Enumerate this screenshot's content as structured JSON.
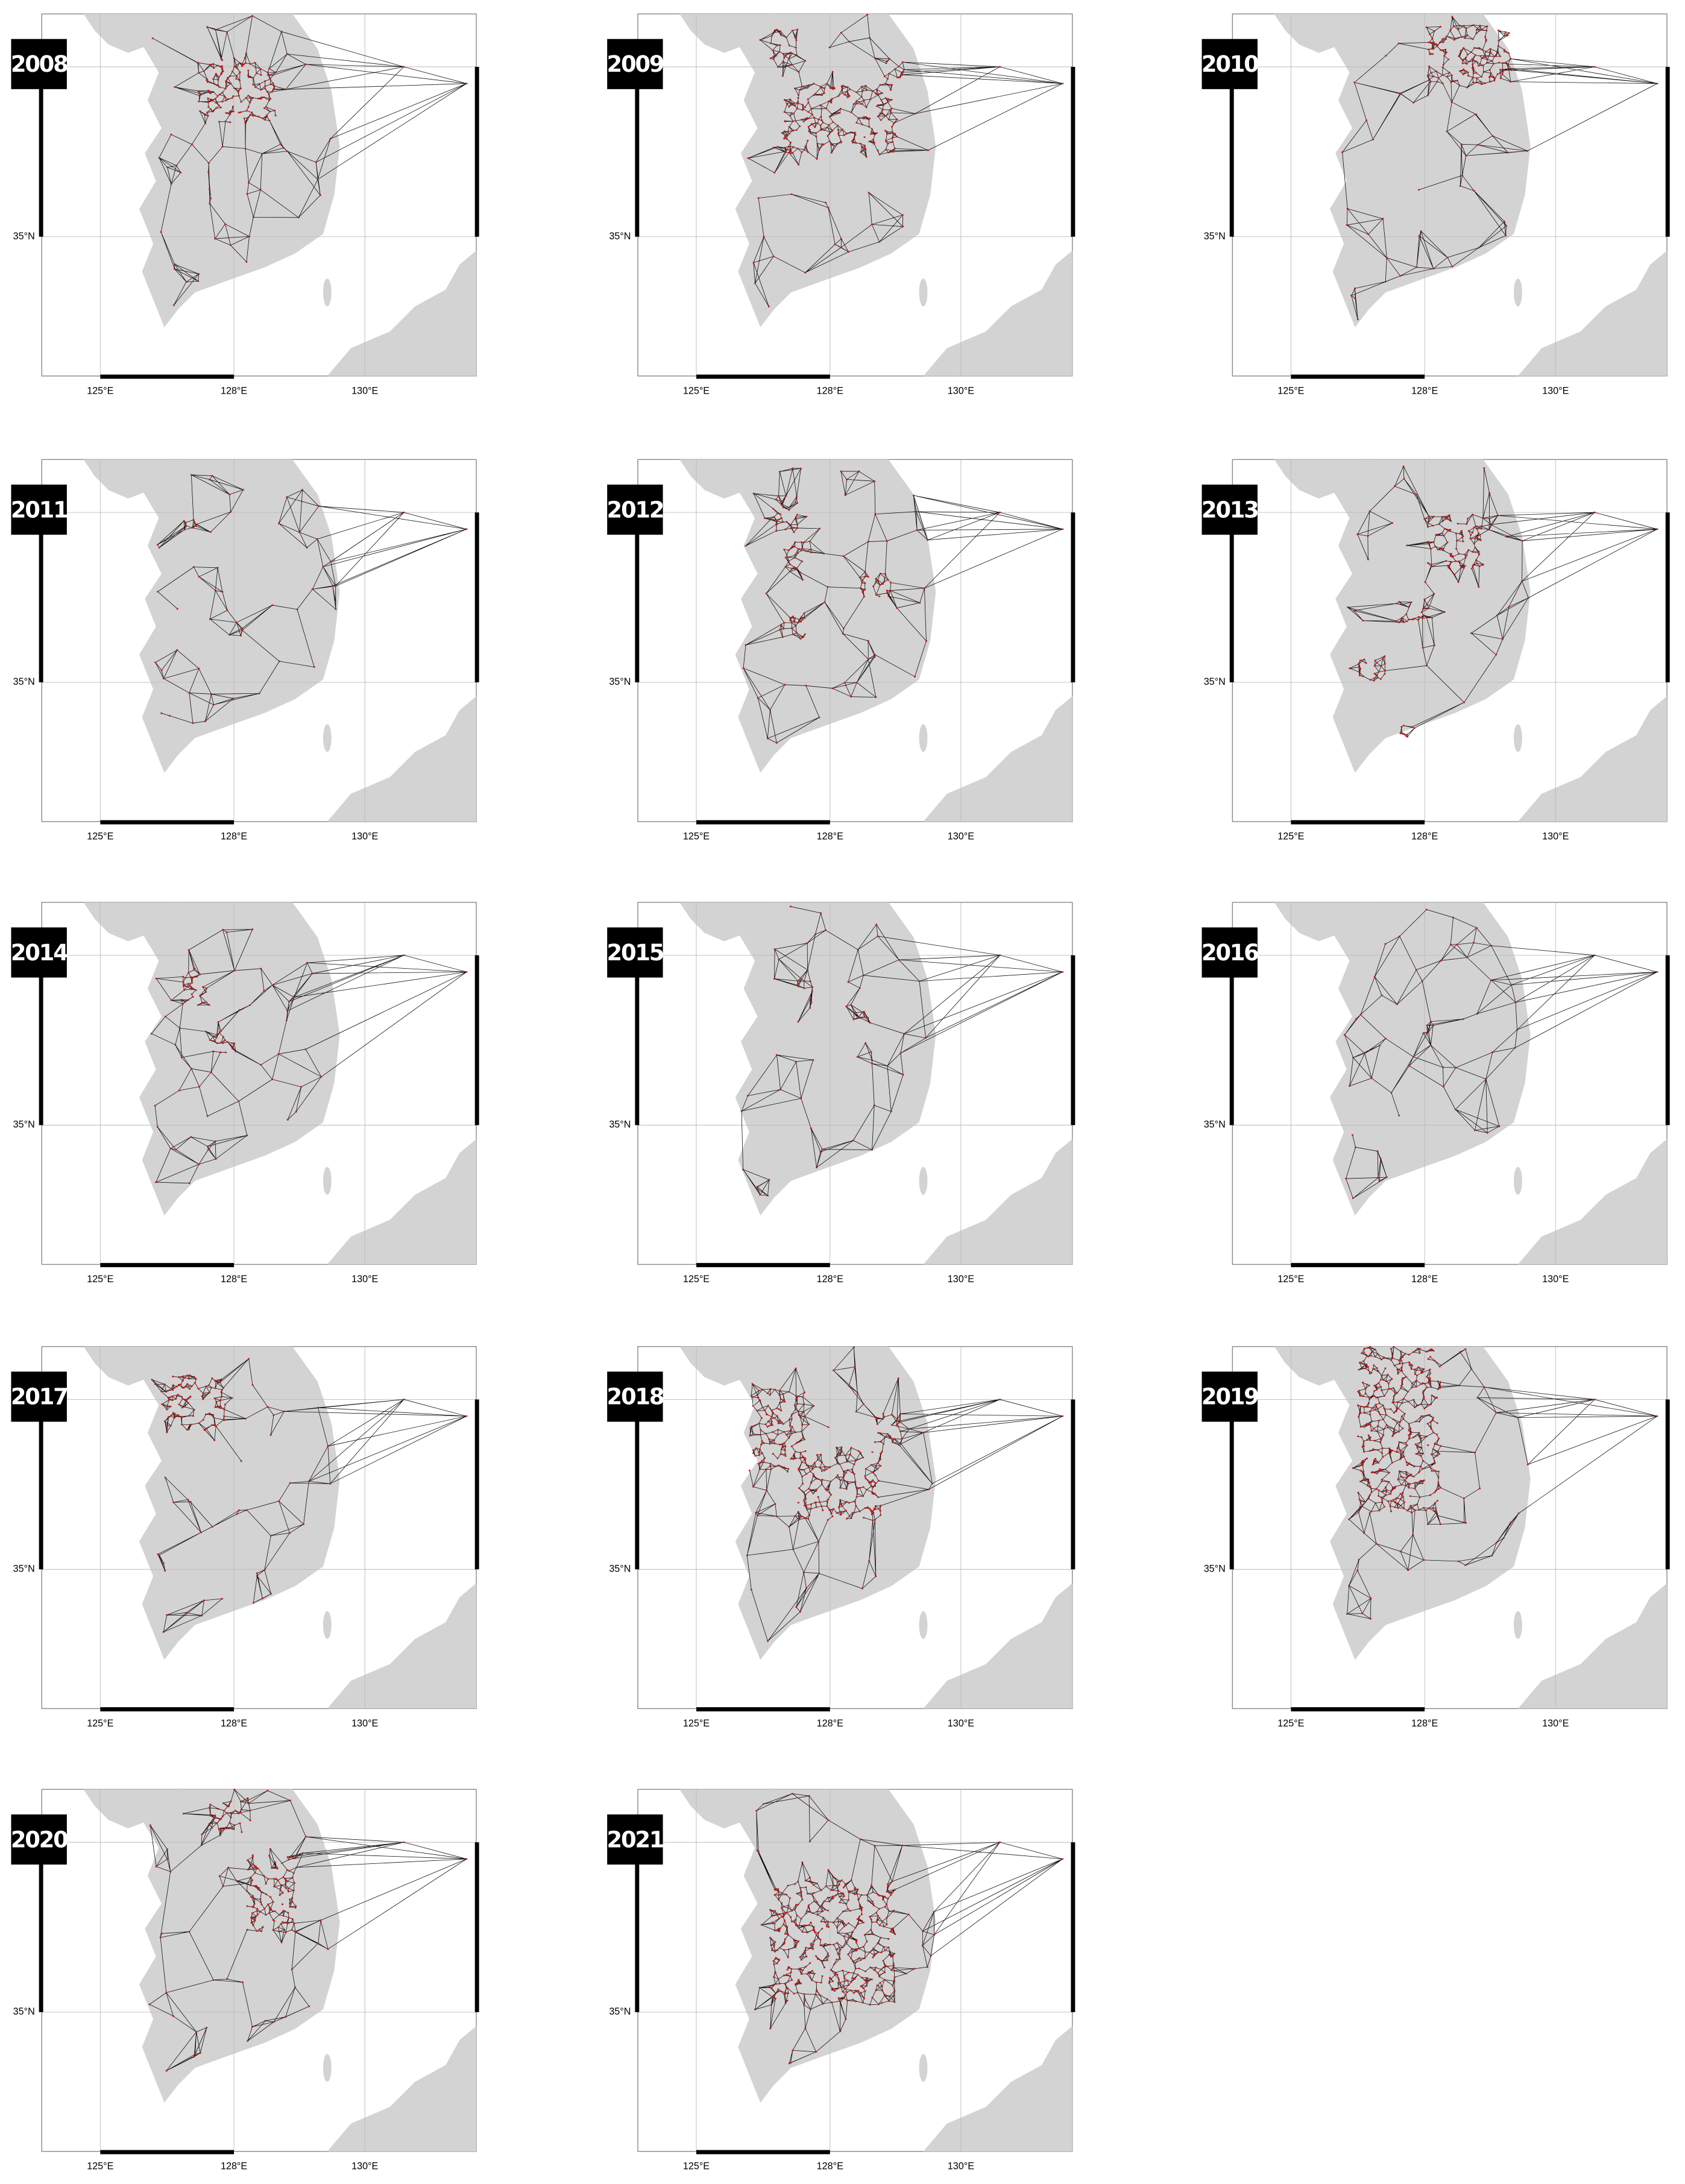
{
  "panels": [
    {
      "label": "2008"
    },
    {
      "label": "2009"
    },
    {
      "label": "2010"
    },
    {
      "label": "2011"
    },
    {
      "label": "2012"
    },
    {
      "label": "2013"
    },
    {
      "label": "2014"
    },
    {
      "label": "2015"
    },
    {
      "label": "2016"
    },
    {
      "label": "2017"
    },
    {
      "label": "2018"
    },
    {
      "label": "2019"
    },
    {
      "label": "2020"
    },
    {
      "label": "2021"
    }
  ],
  "axis": {
    "xtick_labels": [
      "125°E",
      "128°E",
      "130°E"
    ],
    "ytick_label": "35°N"
  }
}
